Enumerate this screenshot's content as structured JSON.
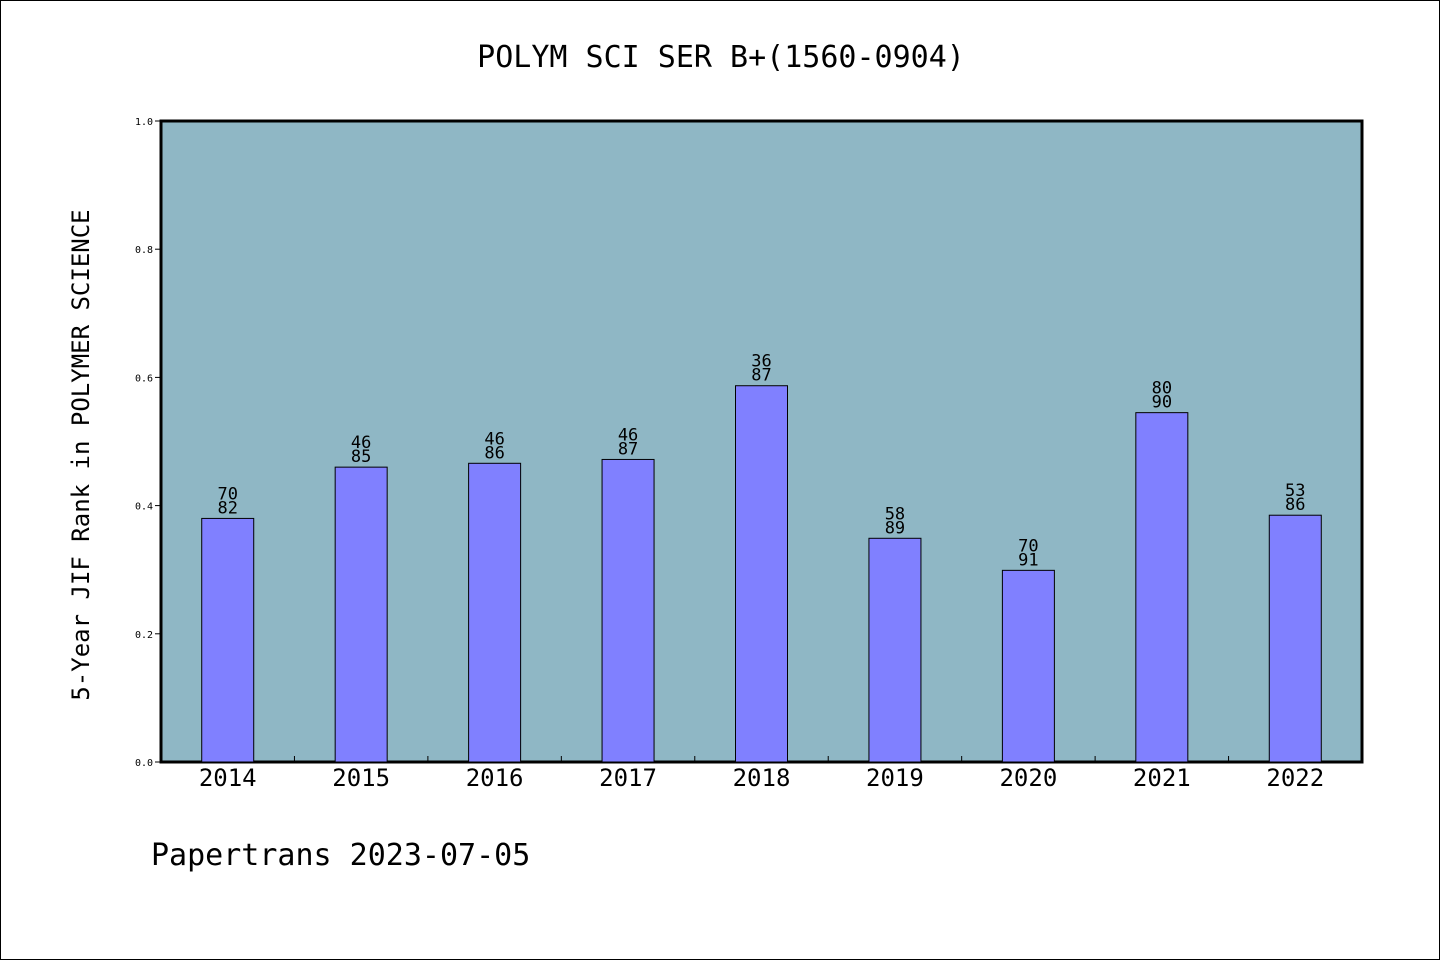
{
  "chart_data": {
    "type": "bar",
    "title": "POLYM SCI SER B+(1560-0904)",
    "xlabel": "",
    "ylabel": "5-Year JIF Rank in POLYMER SCIENCE",
    "ylim": [
      0,
      1.0
    ],
    "yticks": [
      "0.0",
      "0.2",
      "0.4",
      "0.6",
      "0.8",
      "1.0"
    ],
    "categories": [
      "2014",
      "2015",
      "2016",
      "2017",
      "2018",
      "2019",
      "2020",
      "2021",
      "2022"
    ],
    "values": [
      0.38,
      0.46,
      0.466,
      0.472,
      0.587,
      0.349,
      0.299,
      0.545,
      0.385
    ],
    "ranks": [
      "70",
      "46",
      "46",
      "46",
      "36",
      "58",
      "70",
      "80",
      "53"
    ],
    "totals": [
      "82",
      "85",
      "86",
      "87",
      "87",
      "89",
      "91",
      "90",
      "86"
    ],
    "grid": false,
    "colors": {
      "plot_background": "#8fb7c5",
      "bar_fill": "#8080ff",
      "bar_stroke": "#000000"
    }
  },
  "footer": {
    "text": "Papertrans 2023-07-05"
  }
}
